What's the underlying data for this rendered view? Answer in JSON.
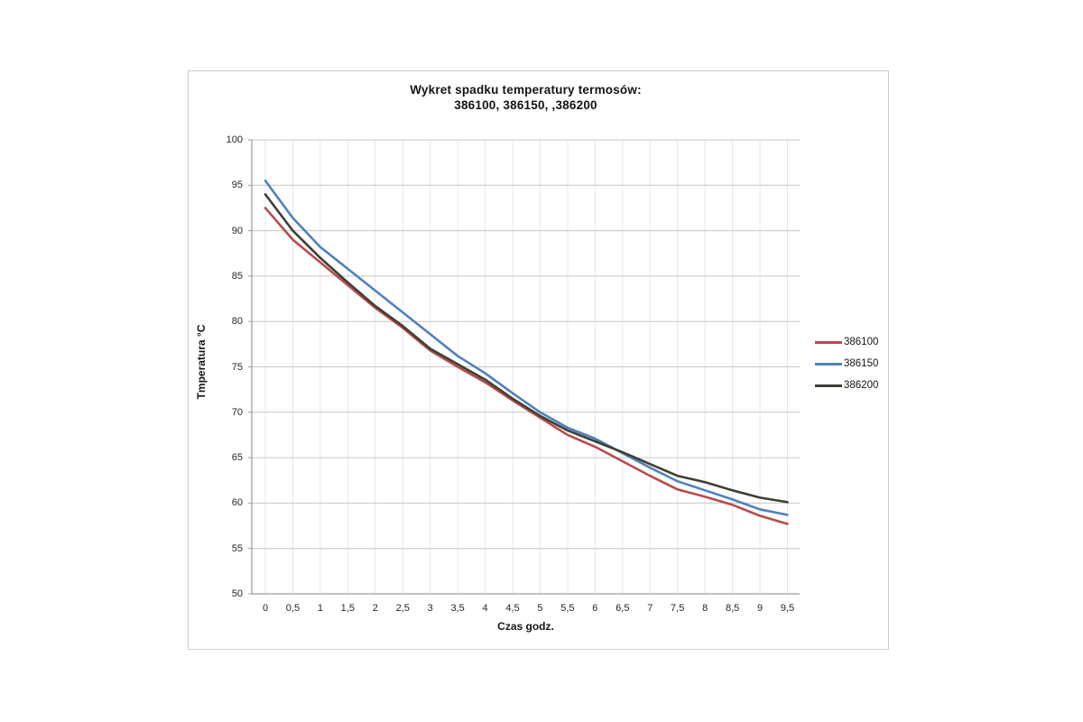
{
  "chart": {
    "title_line1": "Wykret spadku temperatury termosów:",
    "title_line2": "386100, 386150, ,386200",
    "y_axis_title": "Tmperatura °C",
    "x_axis_title": "Czas godz."
  },
  "colors": {
    "series_386100": "#b94b4b",
    "series_386150": "#4f81bd",
    "series_386200": "#403f33",
    "h_gridline": "#c6c6c6",
    "v_gridline": "#dde8f3",
    "axis_line": "#9b9b9b",
    "frame_border": "#cdcdcd",
    "text": "#151515"
  },
  "chart_data": {
    "type": "line",
    "title": "Wykret spadku temperatury termosów: 386100, 386150, ,386200",
    "xlabel": "Czas godz.",
    "ylabel": "Tmperatura °C",
    "ylim": [
      50,
      100
    ],
    "xlim": [
      0,
      9.5
    ],
    "y_ticks": [
      50,
      55,
      60,
      65,
      70,
      75,
      80,
      85,
      90,
      95,
      100
    ],
    "x": [
      0,
      0.5,
      1,
      1.5,
      2,
      2.5,
      3,
      3.5,
      4,
      4.5,
      5,
      5.5,
      6,
      6.5,
      7,
      7.5,
      8,
      8.5,
      9,
      9.5
    ],
    "x_tick_labels": [
      "0",
      "0,5",
      "1",
      "1,5",
      "2",
      "2,5",
      "3",
      "3,5",
      "4",
      "4,5",
      "5",
      "5,5",
      "6",
      "6,5",
      "7",
      "7,5",
      "8",
      "8,5",
      "9",
      "9,5"
    ],
    "grid": true,
    "legend_position": "right",
    "series": [
      {
        "name": "386100",
        "color": "#b94b4b",
        "values": [
          92.5,
          89,
          86.5,
          84,
          81.5,
          79.3,
          76.8,
          75,
          73.3,
          71.3,
          69.4,
          67.5,
          66.2,
          64.6,
          63,
          61.5,
          60.7,
          59.8,
          58.6,
          57.7
        ]
      },
      {
        "name": "386150",
        "color": "#4f81bd",
        "values": [
          95.5,
          91.4,
          88.2,
          85.8,
          83.4,
          81,
          78.6,
          76.2,
          74.3,
          72.1,
          70,
          68.3,
          67.1,
          65.5,
          63.9,
          62.4,
          61.4,
          60.4,
          59.3,
          58.7
        ]
      },
      {
        "name": "386200",
        "color": "#403f33",
        "values": [
          94,
          90,
          87,
          84.3,
          81.7,
          79.5,
          77,
          75.3,
          73.6,
          71.5,
          69.6,
          68,
          66.8,
          65.6,
          64.3,
          63,
          62.3,
          61.4,
          60.6,
          60.1
        ]
      }
    ]
  }
}
